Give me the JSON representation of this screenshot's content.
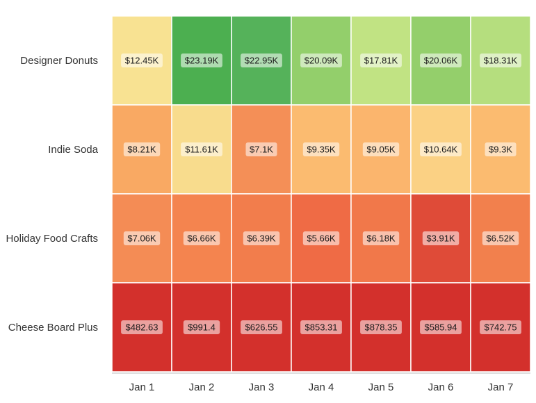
{
  "chart_data": {
    "type": "heatmap",
    "title": "",
    "xlabel": "",
    "ylabel": "",
    "columns": [
      "Jan 1",
      "Jan 2",
      "Jan 3",
      "Jan 4",
      "Jan 5",
      "Jan 6",
      "Jan 7"
    ],
    "rows": [
      "Designer Donuts",
      "Indie Soda",
      "Holiday Food Crafts",
      "Cheese Board Plus"
    ],
    "values": [
      [
        12450,
        23190,
        22950,
        20090,
        17810,
        20060,
        18310
      ],
      [
        8210,
        11610,
        7100,
        9350,
        9050,
        10640,
        9300
      ],
      [
        7060,
        6660,
        6390,
        5660,
        6180,
        3910,
        6520
      ],
      [
        482.63,
        991.4,
        626.55,
        853.31,
        878.35,
        585.94,
        742.75
      ]
    ],
    "labels": [
      [
        "$12.45K",
        "$23.19K",
        "$22.95K",
        "$20.09K",
        "$17.81K",
        "$20.06K",
        "$18.31K"
      ],
      [
        "$8.21K",
        "$11.61K",
        "$7.1K",
        "$9.35K",
        "$9.05K",
        "$10.64K",
        "$9.3K"
      ],
      [
        "$7.06K",
        "$6.66K",
        "$6.39K",
        "$5.66K",
        "$6.18K",
        "$3.91K",
        "$6.52K"
      ],
      [
        "$482.63",
        "$991.4",
        "$626.55",
        "$853.31",
        "$878.35",
        "$585.94",
        "$742.75"
      ]
    ],
    "cell_colors": [
      [
        "#f8e292",
        "#4caf50",
        "#55b25a",
        "#93cf6b",
        "#c1e383",
        "#94cf6b",
        "#b5de7e"
      ],
      [
        "#f9a963",
        "#f8dc8d",
        "#f48f57",
        "#fbbb70",
        "#fbb56d",
        "#fbd184",
        "#fbbb70"
      ],
      [
        "#f48c55",
        "#f4844f",
        "#f27d4c",
        "#ef6b45",
        "#f1784a",
        "#df4b38",
        "#f2804d"
      ],
      [
        "#d3302c",
        "#d3302c",
        "#d3302c",
        "#d3302c",
        "#d3302c",
        "#d3302c",
        "#d3302c"
      ]
    ],
    "grid": false,
    "legend": "none"
  }
}
